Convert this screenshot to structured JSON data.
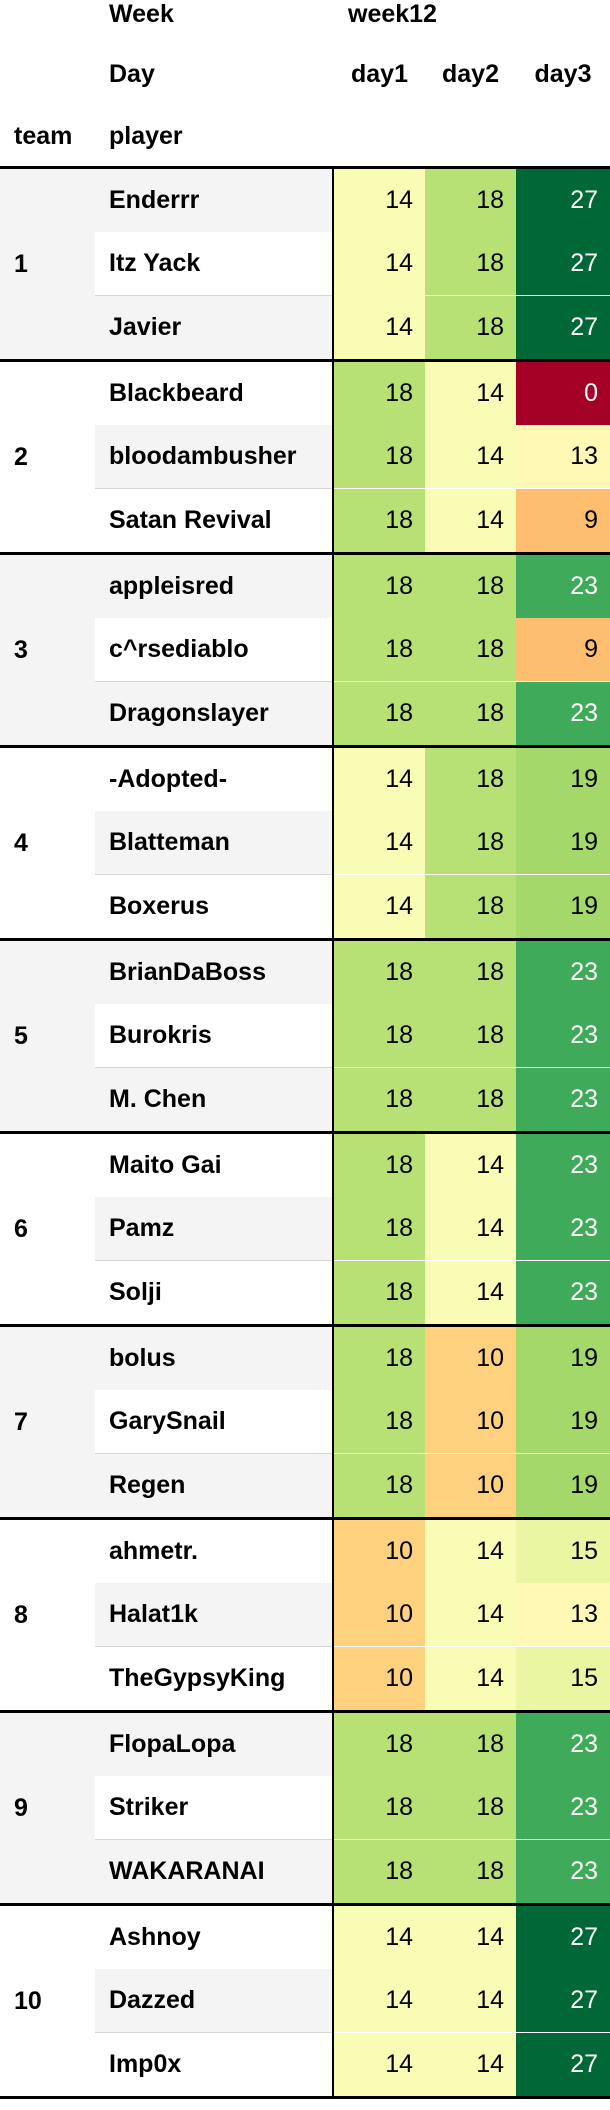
{
  "chart_data": {
    "type": "table",
    "header_rows": [
      {
        "label": "Week",
        "values": [
          "week12"
        ]
      },
      {
        "label": "Day",
        "values": [
          "day1",
          "day2",
          "day3"
        ]
      }
    ],
    "index_names": [
      "team",
      "player"
    ],
    "color_scale": {
      "low": "#a50026",
      "mid": "#ffffbf",
      "high": "#006837",
      "min": 0,
      "max": 27
    },
    "teams": [
      {
        "team": "1",
        "players": [
          {
            "name": "Enderrr",
            "values": [
              14,
              18,
              27
            ]
          },
          {
            "name": "Itz Yack",
            "values": [
              14,
              18,
              27
            ]
          },
          {
            "name": "Javier",
            "values": [
              14,
              18,
              27
            ]
          }
        ]
      },
      {
        "team": "2",
        "players": [
          {
            "name": "Blackbeard",
            "values": [
              18,
              14,
              0
            ]
          },
          {
            "name": "bloodambusher",
            "values": [
              18,
              14,
              13
            ]
          },
          {
            "name": "Satan Revival",
            "values": [
              18,
              14,
              9
            ]
          }
        ]
      },
      {
        "team": "3",
        "players": [
          {
            "name": "appleisred",
            "values": [
              18,
              18,
              23
            ]
          },
          {
            "name": "c^rsediablo",
            "values": [
              18,
              18,
              9
            ]
          },
          {
            "name": "Dragonslayer",
            "values": [
              18,
              18,
              23
            ]
          }
        ]
      },
      {
        "team": "4",
        "players": [
          {
            "name": "-Adopted-",
            "values": [
              14,
              18,
              19
            ]
          },
          {
            "name": "Blatteman",
            "values": [
              14,
              18,
              19
            ]
          },
          {
            "name": "Boxerus",
            "values": [
              14,
              18,
              19
            ]
          }
        ]
      },
      {
        "team": "5",
        "players": [
          {
            "name": "BrianDaBoss",
            "values": [
              18,
              18,
              23
            ]
          },
          {
            "name": "Burokris",
            "values": [
              18,
              18,
              23
            ]
          },
          {
            "name": "M. Chen",
            "values": [
              18,
              18,
              23
            ]
          }
        ]
      },
      {
        "team": "6",
        "players": [
          {
            "name": "Maito Gai",
            "values": [
              18,
              14,
              23
            ]
          },
          {
            "name": "Pamz",
            "values": [
              18,
              14,
              23
            ]
          },
          {
            "name": "Solji",
            "values": [
              18,
              14,
              23
            ]
          }
        ]
      },
      {
        "team": "7",
        "players": [
          {
            "name": "bolus",
            "values": [
              18,
              10,
              19
            ]
          },
          {
            "name": "GarySnail",
            "values": [
              18,
              10,
              19
            ]
          },
          {
            "name": "Regen",
            "values": [
              18,
              10,
              19
            ]
          }
        ]
      },
      {
        "team": "8",
        "players": [
          {
            "name": "ahmetr.",
            "values": [
              10,
              14,
              15
            ]
          },
          {
            "name": "Halat1k",
            "values": [
              10,
              14,
              13
            ]
          },
          {
            "name": "TheGypsyKing",
            "values": [
              10,
              14,
              15
            ]
          }
        ]
      },
      {
        "team": "9",
        "players": [
          {
            "name": "FlopaLopa",
            "values": [
              18,
              18,
              23
            ]
          },
          {
            "name": "Striker",
            "values": [
              18,
              18,
              23
            ]
          },
          {
            "name": "WAKARANAI",
            "values": [
              18,
              18,
              23
            ]
          }
        ]
      },
      {
        "team": "10",
        "players": [
          {
            "name": "Ashnoy",
            "values": [
              14,
              14,
              27
            ]
          },
          {
            "name": "Dazzed",
            "values": [
              14,
              14,
              27
            ]
          },
          {
            "name": "Imp0x",
            "values": [
              14,
              14,
              27
            ]
          }
        ]
      }
    ]
  }
}
